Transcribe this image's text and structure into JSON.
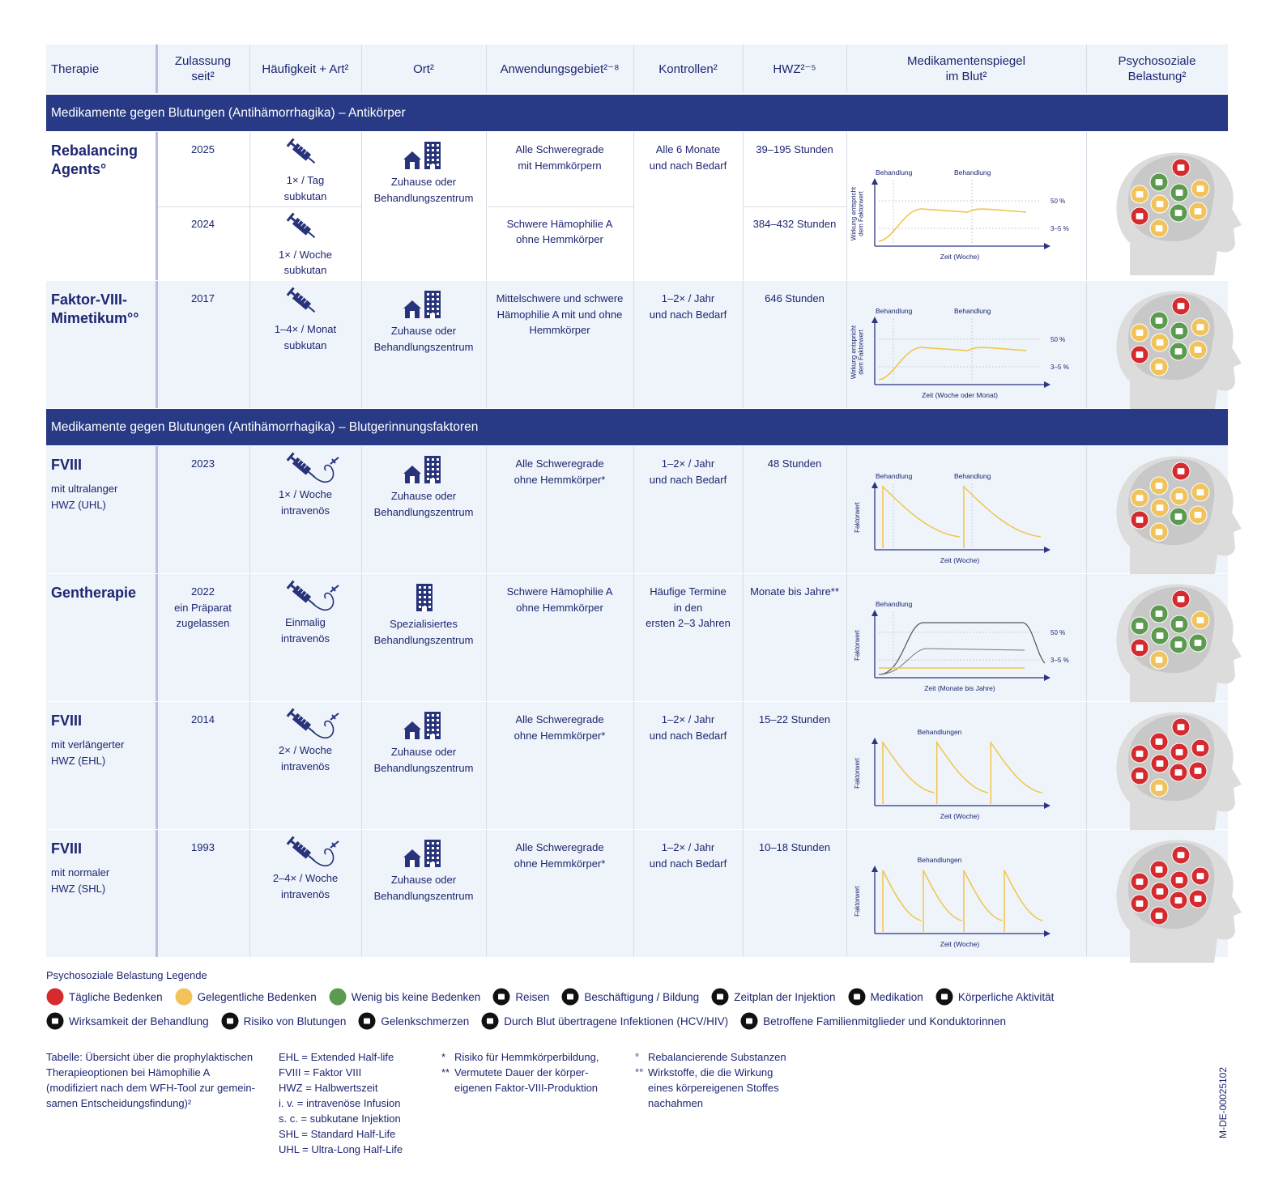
{
  "header": {
    "columns": [
      "Therapie",
      "Zulassung\nseit²",
      "Häufigkeit + Art²",
      "Ort²",
      "Anwendungsgebiet²⁻⁸",
      "Kontrollen²",
      "HWZ²⁻⁵",
      "Medikamentenspiegel\nim Blut²",
      "Psychosoziale\nBelastung²"
    ]
  },
  "sections": [
    {
      "title": "Medikamente gegen Blutungen (Antihämorrhagika) – Antikörper",
      "rows": [
        {
          "name": "Rebalancing\nAgents°",
          "years": [
            "2025",
            "2024"
          ],
          "frequency": [
            "1× / Tag\nsubkutan",
            "1× / Woche\nsubkutan"
          ],
          "frequency_icon": "syringe",
          "place": "Zuhause oder\nBehandlungszentrum",
          "place_icon": "home",
          "indication": [
            "Alle Schweregrade\nmit Hemmkörpern",
            "Schwere Hämophilie A\nohne Hemmkörper"
          ],
          "controls": "Alle 6 Monate\nund nach Bedarf",
          "hwz": [
            "39–195 Stunden",
            "384–432 Stunden"
          ],
          "chart": {
            "curve": "steady",
            "treatments": [
              "Behandlung",
              "Behandlung"
            ],
            "y_label": "Wirkung entspricht\ndem Faktorwert",
            "x_label": "Zeit (Woche)",
            "levels": [
              "50 %",
              "3–5 %"
            ]
          },
          "burden": [
            "#f2c35b",
            "#5c9a4f",
            "#f2c35b",
            "#f2c35b",
            "#5c9a4f",
            "#5c9a4f",
            "#f2c35b",
            "#f2c35b",
            "#d52b2e",
            "#d52b2e"
          ]
        },
        {
          "name": "Faktor-VIII-\nMimetikum°°",
          "years": [
            "2017"
          ],
          "frequency": [
            "1–4× / Monat\nsubkutan"
          ],
          "frequency_icon": "syringe",
          "place": "Zuhause oder\nBehandlungszentrum",
          "place_icon": "home",
          "indication": [
            "Mittelschwere und schwere\nHämophilie A mit und ohne\nHemmkörper"
          ],
          "controls": "1–2× / Jahr\nund nach Bedarf",
          "hwz": [
            "646 Stunden"
          ],
          "chart": {
            "curve": "steady",
            "treatments": [
              "Behandlung",
              "Behandlung"
            ],
            "y_label": "Wirkung entspricht\ndem Faktorwert",
            "x_label": "Zeit (Woche oder Monat)",
            "levels": [
              "50 %",
              "3–5 %"
            ]
          },
          "burden": [
            "#f2c35b",
            "#5c9a4f",
            "#f2c35b",
            "#f2c35b",
            "#5c9a4f",
            "#5c9a4f",
            "#f2c35b",
            "#f2c35b",
            "#d52b2e",
            "#d52b2e"
          ]
        }
      ]
    },
    {
      "title": "Medikamente gegen Blutungen (Antihämorrhagika) – Blutgerinnungsfaktoren",
      "rows": [
        {
          "name": "FVIII",
          "sub": "mit ultralanger\nHWZ (UHL)",
          "years": [
            "2023"
          ],
          "frequency": [
            "1× / Woche\nintravenös"
          ],
          "frequency_icon": "infusion",
          "place": "Zuhause oder\nBehandlungszentrum",
          "place_icon": "home",
          "indication": [
            "Alle Schweregrade\nohne Hemmkörper*"
          ],
          "controls": "1–2× / Jahr\nund nach Bedarf",
          "hwz": [
            "48 Stunden"
          ],
          "chart": {
            "curve": "decay",
            "peaks": 2,
            "treatments": [
              "Behandlung",
              "Behandlung"
            ],
            "y_label": "Faktorwert",
            "x_label": "Zeit (Woche)"
          },
          "burden": [
            "#f2c35b",
            "#f2c35b",
            "#f2c35b",
            "#f2c35b",
            "#f2c35b",
            "#5c9a4f",
            "#f2c35b",
            "#f2c35b",
            "#d52b2e",
            "#d52b2e"
          ]
        },
        {
          "name": "Gentherapie",
          "years": [
            "2022\nein Präparat\nzugelassen"
          ],
          "frequency": [
            "Einmalig\nintravenös"
          ],
          "frequency_icon": "infusion",
          "place": "Spezialisiertes\nBehandlungszentrum",
          "place_icon": "clinic",
          "indication": [
            "Schwere Hämophilie A\nohne Hemmkörper"
          ],
          "controls": "Häufige Termine\nin den\nersten 2–3 Jahren",
          "hwz": [
            "Monate bis Jahre**"
          ],
          "chart": {
            "curve": "gene",
            "treatments": [
              "Behandlung"
            ],
            "y_label": "Faktorwert",
            "x_label": "Zeit (Monate bis Jahre)",
            "levels": [
              "50 %",
              "3–5 %"
            ]
          },
          "burden": [
            "#5c9a4f",
            "#5c9a4f",
            "#f2c35b",
            "#5c9a4f",
            "#5c9a4f",
            "#5c9a4f",
            "#5c9a4f",
            "#f2c35b",
            "#d52b2e",
            "#d52b2e"
          ]
        },
        {
          "name": "FVIII",
          "sub": "mit verlängerter\nHWZ (EHL)",
          "years": [
            "2014"
          ],
          "frequency": [
            "2× / Woche\nintravenös"
          ],
          "frequency_icon": "infusion",
          "place": "Zuhause oder\nBehandlungszentrum",
          "place_icon": "home",
          "indication": [
            "Alle Schweregrade\nohne Hemmkörper*"
          ],
          "controls": "1–2× / Jahr\nund nach Bedarf",
          "hwz": [
            "15–22 Stunden"
          ],
          "chart": {
            "curve": "decay",
            "peaks": 3,
            "treatments": [
              "Behandlungen"
            ],
            "y_label": "Faktorwert",
            "x_label": "Zeit (Woche)"
          },
          "burden": [
            "#d52b2e",
            "#d52b2e",
            "#f2c35b",
            "#d52b2e",
            "#d52b2e",
            "#d52b2e",
            "#d52b2e",
            "#d52b2e",
            "#d52b2e",
            "#d52b2e"
          ]
        },
        {
          "name": "FVIII",
          "sub": "mit normaler\nHWZ (SHL)",
          "years": [
            "1993"
          ],
          "frequency": [
            "2–4× / Woche\nintravenös"
          ],
          "frequency_icon": "infusion",
          "place": "Zuhause oder\nBehandlungszentrum",
          "place_icon": "home",
          "indication": [
            "Alle Schweregrade\nohne Hemmkörper*"
          ],
          "controls": "1–2× / Jahr\nund nach Bedarf",
          "hwz": [
            "10–18 Stunden"
          ],
          "chart": {
            "curve": "decay",
            "peaks": 4,
            "treatments": [
              "Behandlungen"
            ],
            "y_label": "Faktorwert",
            "x_label": "Zeit (Woche)"
          },
          "burden": [
            "#d52b2e",
            "#d52b2e",
            "#d52b2e",
            "#d52b2e",
            "#d52b2e",
            "#d52b2e",
            "#d52b2e",
            "#d52b2e",
            "#d52b2e",
            "#d52b2e"
          ]
        }
      ]
    }
  ],
  "legend": {
    "title": "Psychosoziale Belastung Legende",
    "levels": [
      {
        "label": "Tägliche Bedenken",
        "color": "#d52b2e"
      },
      {
        "label": "Gelegentliche Bedenken",
        "color": "#f2c35b"
      },
      {
        "label": "Wenig bis keine Bedenken",
        "color": "#5c9a4f"
      }
    ],
    "icons": [
      "Reisen",
      "Beschäftigung / Bildung",
      "Zeitplan der Injektion",
      "Medikation",
      "Körperliche Aktivität",
      "Wirksamkeit der Behandlung",
      "Risiko von Blutungen",
      "Gelenkschmerzen",
      "Durch Blut übertragene Infektionen (HCV/HIV)",
      "Betroffene Familienmitglieder und Konduktorinnen"
    ]
  },
  "footer": {
    "caption": "Tabelle: Übersicht über die prophylaktischen\nTherapieoptionen bei Hämophilie A\n(modifiziert nach dem WFH-Tool zur gemein-\nsamen Entscheidungsfindung)²",
    "abbreviations": [
      "EHL = Extended Half-life",
      "FVIII = Faktor VIII",
      "HWZ = Halbwertszeit",
      "i. v. = intravenöse Infusion",
      "s. c. = subkutane Injektion",
      "SHL = Standard Half-Life",
      "UHL = Ultra-Long Half-Life"
    ],
    "footnotes": [
      {
        "mark": "*",
        "text": "Risiko für Hemmkörperbildung,"
      },
      {
        "mark": "**",
        "text": "Vermutete Dauer der körper-\neigenen Faktor-VIII-Produktion"
      }
    ],
    "footnotes2": [
      {
        "mark": "°",
        "text": "Rebalancierende Substanzen"
      },
      {
        "mark": "°°",
        "text": "Wirkstoffe, die die Wirkung\neines körpereigenen Stoffes\nnachahmen"
      }
    ],
    "code": "M-DE-00025102"
  }
}
